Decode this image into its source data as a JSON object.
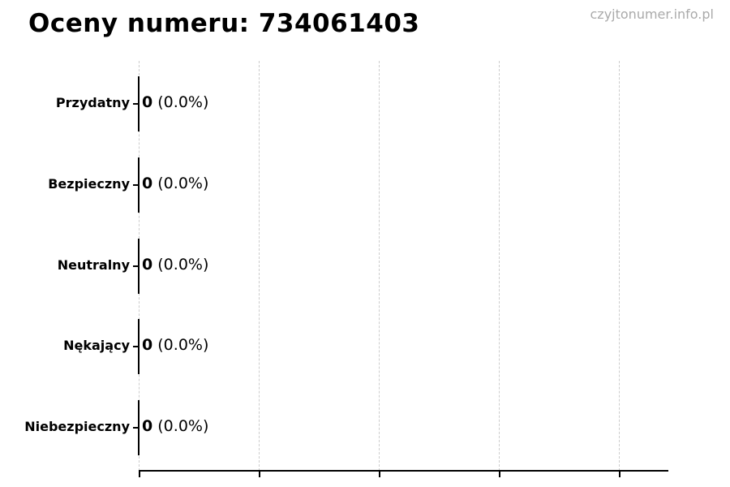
{
  "title": "Oceny numeru: 734061403",
  "watermark": "czyjtonumer.info.pl",
  "colors": {
    "background": "#ffffff",
    "text": "#000000",
    "watermark_text": "#aaaaaa",
    "gridline": "#cccccc",
    "axis": "#000000",
    "bar_edge": "#000000"
  },
  "chart_data": {
    "type": "bar",
    "orientation": "horizontal",
    "title": "Oceny numeru: 734061403",
    "categories": [
      "Przydatny",
      "Bezpieczny",
      "Neutralny",
      "Nękający",
      "Niebezpieczny"
    ],
    "values": [
      0,
      0,
      0,
      0,
      0
    ],
    "percentages": [
      0.0,
      0.0,
      0.0,
      0.0,
      0.0
    ],
    "value_labels": [
      "0 (0.0%)",
      "0 (0.0%)",
      "0 (0.0%)",
      "0 (0.0%)",
      "0 (0.0%)"
    ],
    "xlabel": "",
    "ylabel": "",
    "xlim": [
      0,
      0.044
    ],
    "x_tick_count": 5,
    "x_tick_labels_visible": false,
    "grid": "vertical-dashed",
    "legend": "none",
    "bar_fill": "none"
  },
  "rows": [
    {
      "label": "Przydatny",
      "count": "0",
      "percent": " (0.0%)"
    },
    {
      "label": "Bezpieczny",
      "count": "0",
      "percent": " (0.0%)"
    },
    {
      "label": "Neutralny",
      "count": "0",
      "percent": " (0.0%)"
    },
    {
      "label": "Nękający",
      "count": "0",
      "percent": " (0.0%)"
    },
    {
      "label": "Niebezpieczny",
      "count": "0",
      "percent": " (0.0%)"
    }
  ]
}
